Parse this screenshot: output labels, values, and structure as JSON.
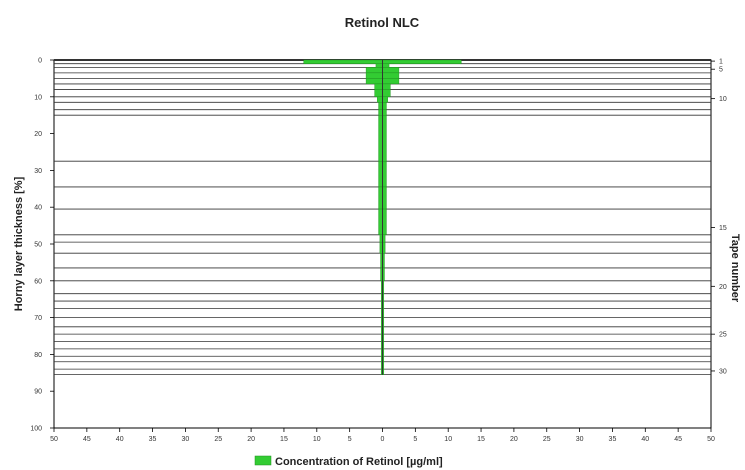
{
  "chart_data": {
    "type": "bar",
    "orientation": "horizontal-symmetric",
    "title": "Retinol NLC",
    "ylabel": "Horny layer thickness [%]",
    "y2label": "Tape number",
    "ylim": [
      0,
      100
    ],
    "xlim": [
      -50,
      50
    ],
    "y_ticks": [
      0,
      10,
      20,
      30,
      40,
      50,
      60,
      70,
      80,
      90,
      100
    ],
    "x_ticks": [
      -50,
      -45,
      -40,
      -35,
      -30,
      -25,
      -20,
      -15,
      -10,
      -5,
      0,
      5,
      10,
      15,
      20,
      25,
      30,
      35,
      40,
      45,
      50
    ],
    "x_tick_labels": [
      "50",
      "45",
      "40",
      "35",
      "30",
      "25",
      "20",
      "15",
      "10",
      "5",
      "0",
      "5",
      "10",
      "15",
      "20",
      "25",
      "30",
      "35",
      "40",
      "45",
      "50"
    ],
    "y2_ticks": [
      {
        "label": "1",
        "depth": 0.3
      },
      {
        "label": "5",
        "depth": 2.5
      },
      {
        "label": "10",
        "depth": 10.5
      },
      {
        "label": "15",
        "depth": 45.5
      },
      {
        "label": "20",
        "depth": 61.5
      },
      {
        "label": "25",
        "depth": 74.5
      },
      {
        "label": "30",
        "depth": 84.5
      }
    ],
    "tape_boundaries": [
      0,
      1,
      2,
      3.5,
      5,
      6.5,
      8,
      10,
      11.5,
      13.5,
      15,
      27.5,
      34.5,
      40.5,
      47.5,
      49.5,
      52.5,
      56.5,
      60,
      63.5,
      65.5,
      67.5,
      70,
      72.5,
      74.5,
      76.5,
      78.5,
      80.5,
      82,
      84,
      85.5
    ],
    "concentration": [
      12,
      1,
      2.5,
      2.5,
      2.5,
      1.2,
      1.2,
      0.8,
      0.6,
      0.6,
      0.6,
      0.6,
      0.6,
      0.6,
      0.4,
      0.4,
      0.3,
      0.3,
      0.2,
      0.2,
      0.2,
      0.2,
      0.2,
      0.2,
      0.2,
      0.2,
      0.2,
      0.2,
      0.2,
      0.2
    ],
    "legend": {
      "label": "Concentration of Retinol [µg/ml]",
      "position": "bottom"
    },
    "colors": {
      "bar": "#33cc33",
      "bar_edge": "#1f8f1f",
      "grid": "#333333"
    }
  }
}
